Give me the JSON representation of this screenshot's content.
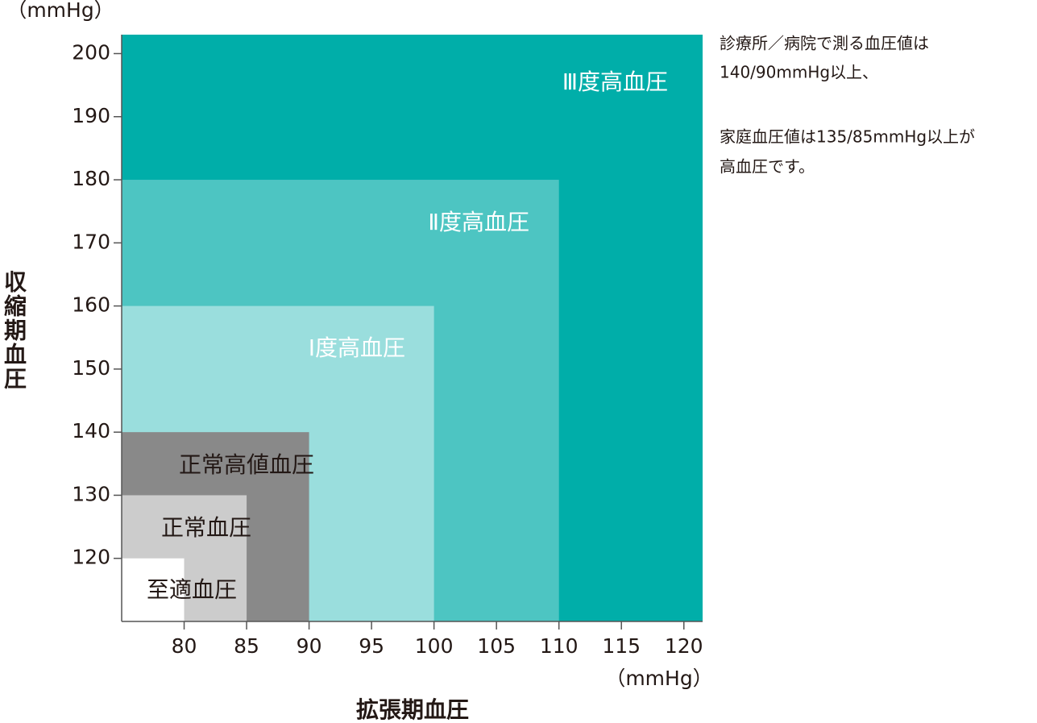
{
  "chart_data": {
    "type": "nested-region",
    "y_unit": "（mmHg）",
    "x_unit": "（mmHg）",
    "x_label": "拡張期血圧",
    "y_label": "収縮期血圧",
    "xlim": [
      75,
      121.5
    ],
    "ylim": [
      110,
      203
    ],
    "xticks": [
      80,
      85,
      90,
      95,
      100,
      105,
      110,
      115,
      120
    ],
    "yticks": [
      120,
      130,
      140,
      150,
      160,
      170,
      180,
      190,
      200
    ],
    "regions": [
      {
        "name": "至適血圧",
        "color": "#ffffff",
        "x": 80,
        "y": 120
      },
      {
        "name": "正常血圧",
        "color": "#cccccc",
        "x": 85,
        "y": 130
      },
      {
        "name": "正常高値血圧",
        "color": "#898989",
        "x": 90,
        "y": 140
      },
      {
        "name": "Ⅰ度高血圧",
        "color": "#9adedd",
        "x": 100,
        "y": 160
      },
      {
        "name": "Ⅱ度高血圧",
        "color": "#4dc5c2",
        "x": 110,
        "y": 180
      },
      {
        "name": "Ⅲ度高血圧",
        "color": "#00aea9"
      }
    ],
    "annotations": [
      "診療所／病院で測る血圧値は",
      "140/90mmHg以上、",
      "家庭血圧値は135/85mmHg以上が",
      "高血圧です。"
    ]
  }
}
